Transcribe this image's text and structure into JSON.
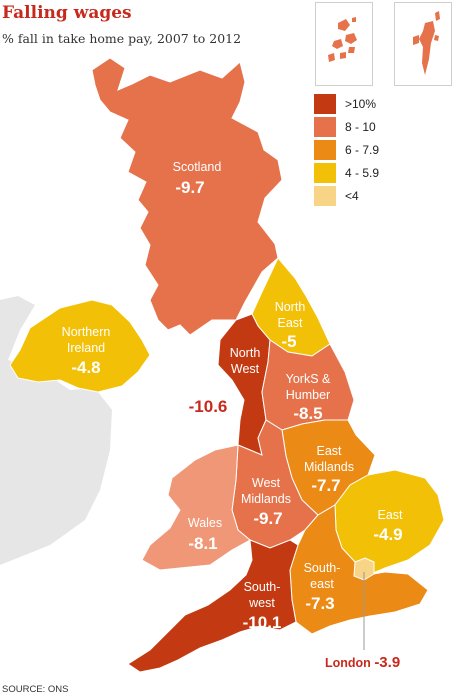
{
  "header": {
    "title": "Falling wages",
    "subtitle": "% fall in take home pay, 2007 to 2012",
    "source": "SOURCE: ONS"
  },
  "colors": {
    "gt10": "#c33a12",
    "r8_10": "#e5724b",
    "r6_79": "#eb8a14",
    "r4_59": "#f2c006",
    "lt4": "#f8d487",
    "wales": "#ef9777",
    "land_other": "#e6e6e6"
  },
  "legend": [
    {
      "label": ">10%",
      "color": "#c33a12"
    },
    {
      "label": "8 - 10",
      "color": "#e5724b"
    },
    {
      "label": "6 - 7.9",
      "color": "#eb8a14"
    },
    {
      "label": "4 - 5.9",
      "color": "#f2c006"
    },
    {
      "label": "<4",
      "color": "#f8d487"
    }
  ],
  "regions": {
    "scotland": {
      "line1": "Scotland",
      "line2": "",
      "value": "-9.7"
    },
    "northern_ireland": {
      "line1": "Northern",
      "line2": "Ireland",
      "value": "-4.8"
    },
    "north_east": {
      "line1": "North",
      "line2": "East",
      "value": "-5"
    },
    "north_west": {
      "line1": "North",
      "line2": "West",
      "value": "-10.6"
    },
    "yorks_humber": {
      "line1": "YorkS &",
      "line2": "Humber",
      "value": "-8.5"
    },
    "east_midlands": {
      "line1": "East",
      "line2": "Midlands",
      "value": "-7.7"
    },
    "west_midlands": {
      "line1": "West",
      "line2": "Midlands",
      "value": "-9.7"
    },
    "wales": {
      "line1": "Wales",
      "line2": "",
      "value": "-8.1"
    },
    "east": {
      "line1": "East",
      "line2": "",
      "value": "-4.9"
    },
    "south_east": {
      "line1": "South-",
      "line2": "east",
      "value": "-7.3"
    },
    "south_west": {
      "line1": "South-",
      "line2": "west",
      "value": "-10.1"
    },
    "london": {
      "line1": "London",
      "line2": "",
      "value": "-3.9"
    }
  }
}
